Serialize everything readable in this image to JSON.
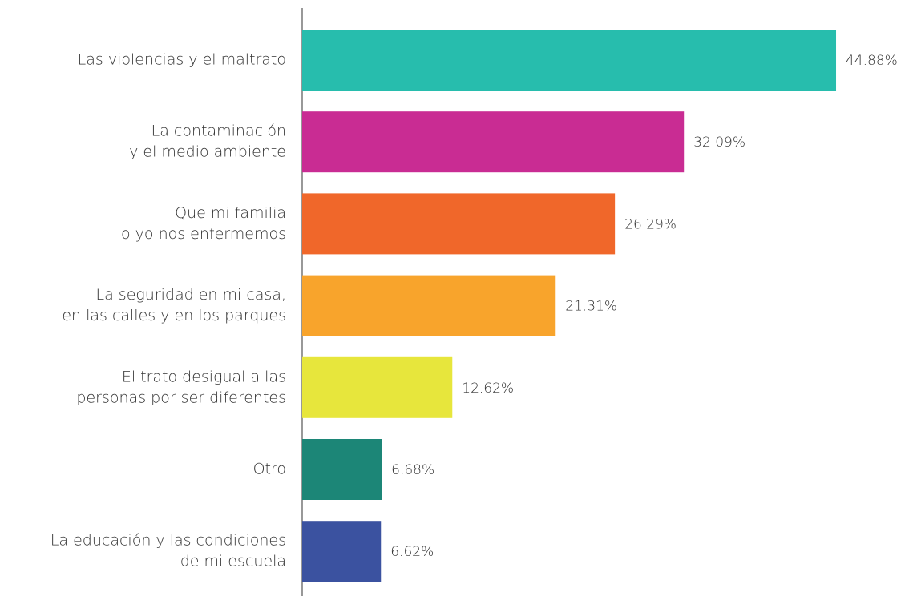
{
  "chart_data": {
    "type": "barh",
    "categories": [
      [
        "Las violencias y el maltrato"
      ],
      [
        "La contaminación",
        "y el medio ambiente"
      ],
      [
        "Que mi familia",
        "o yo nos enfermemos"
      ],
      [
        "La seguridad en mi casa,",
        "en las calles y en los parques"
      ],
      [
        "El trato desigual a las",
        "personas por ser diferentes"
      ],
      [
        "Otro"
      ],
      [
        "La educación y las condiciones",
        "de mi escuela"
      ]
    ],
    "values": [
      44.88,
      32.09,
      26.29,
      21.31,
      12.62,
      6.68,
      6.62
    ],
    "value_labels": [
      "44.88%",
      "32.09%",
      "26.29%",
      "21.31%",
      "12.62%",
      "6.68%",
      "6.62%"
    ],
    "colors": [
      "#27bdad",
      "#c92c93",
      "#f0672a",
      "#f8a42c",
      "#e7e63c",
      "#1c8677",
      "#3b52a0"
    ]
  }
}
